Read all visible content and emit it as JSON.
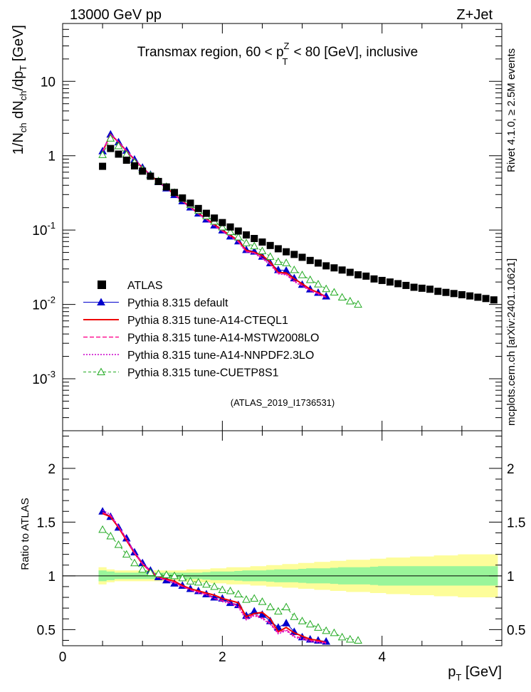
{
  "header": {
    "left": "13000 GeV pp",
    "right": "Z+Jet"
  },
  "chart_data": {
    "type": "line",
    "title": "Transmax region, 60 < p",
    "title_sub": "T",
    "title_sup": "Z",
    "title_tail": "< 80 [GeV], inclusive",
    "watermark": "(ATLAS_2019_I1736531)",
    "side_label_top": "Rivet 4.1.0, ≥ 2.5M events",
    "side_label_bottom": "mcplots.cern.ch [arXiv:2401.10621]",
    "main_ylabel": "1/N_ch dN_ch/dp_T [GeV]",
    "ratio_ylabel": "Ratio to ATLAS",
    "xlabel": "p_T [GeV]",
    "xlim": [
      0,
      5.5
    ],
    "ylim_main": [
      0.0002,
      60
    ],
    "ylim_ratio": [
      0.35,
      2.35
    ],
    "x_ticks": [
      "0",
      "2",
      "4"
    ],
    "y_ticks_main": [
      "10",
      "1",
      "10^-1",
      "10^-2",
      "10^-3"
    ],
    "y_ticks_ratio": [
      "2",
      "1.5",
      "1",
      "0.5"
    ],
    "x": [
      0.5,
      0.6,
      0.7,
      0.8,
      0.9,
      1.0,
      1.1,
      1.2,
      1.3,
      1.4,
      1.5,
      1.6,
      1.7,
      1.8,
      1.9,
      2.0,
      2.1,
      2.2,
      2.3,
      2.4,
      2.5,
      2.6,
      2.7,
      2.8,
      2.9,
      3.0,
      3.1,
      3.2,
      3.3,
      3.4,
      3.5,
      3.6,
      3.7,
      3.8,
      3.9,
      4.0,
      4.1,
      4.2,
      4.3,
      4.4,
      4.5,
      4.6,
      4.7,
      4.8,
      4.9,
      5.0,
      5.1,
      5.2,
      5.3,
      5.4
    ],
    "series": [
      {
        "name": "ATLAS",
        "values": [
          0.72,
          1.25,
          1.05,
          0.87,
          0.73,
          0.62,
          0.53,
          0.45,
          0.38,
          0.32,
          0.27,
          0.23,
          0.195,
          0.168,
          0.145,
          0.126,
          0.11,
          0.097,
          0.086,
          0.077,
          0.069,
          0.062,
          0.056,
          0.051,
          0.047,
          0.043,
          0.039,
          0.036,
          0.033,
          0.031,
          0.029,
          0.027,
          0.025,
          0.024,
          0.022,
          0.021,
          0.02,
          0.019,
          0.018,
          0.017,
          0.0165,
          0.016,
          0.015,
          0.0145,
          0.014,
          0.0135,
          0.013,
          0.0125,
          0.012,
          0.0115
        ],
        "ratio_band_inner": [
          0.05,
          0.04,
          0.03,
          0.03,
          0.03,
          0.03,
          0.03,
          0.03,
          0.03,
          0.03,
          0.03,
          0.03,
          0.03,
          0.035,
          0.04,
          0.04,
          0.04,
          0.045,
          0.05,
          0.05,
          0.05,
          0.055,
          0.06,
          0.06,
          0.06,
          0.065,
          0.07,
          0.07,
          0.07,
          0.075,
          0.08,
          0.08,
          0.08,
          0.08,
          0.085,
          0.09,
          0.09,
          0.09,
          0.09,
          0.09,
          0.09,
          0.09,
          0.09,
          0.09,
          0.09,
          0.09,
          0.09,
          0.09,
          0.09,
          0.09
        ],
        "ratio_band_outer": [
          0.08,
          0.06,
          0.05,
          0.05,
          0.05,
          0.05,
          0.05,
          0.05,
          0.05,
          0.05,
          0.05,
          0.06,
          0.06,
          0.06,
          0.07,
          0.07,
          0.08,
          0.08,
          0.08,
          0.09,
          0.09,
          0.1,
          0.1,
          0.11,
          0.11,
          0.12,
          0.12,
          0.13,
          0.13,
          0.14,
          0.14,
          0.15,
          0.15,
          0.15,
          0.16,
          0.16,
          0.17,
          0.17,
          0.17,
          0.18,
          0.18,
          0.18,
          0.19,
          0.19,
          0.19,
          0.2,
          0.2,
          0.2,
          0.2,
          0.2
        ],
        "color": "#000000",
        "band_inner_color": "#9af59a",
        "band_outer_color": "#fdfd9a"
      },
      {
        "name": "Pythia 8.315 default",
        "ratio": [
          1.6,
          1.55,
          1.45,
          1.35,
          1.22,
          1.12,
          1.05,
          0.99,
          0.96,
          0.93,
          0.91,
          0.88,
          0.86,
          0.83,
          0.8,
          0.79,
          0.75,
          0.73,
          0.63,
          0.67,
          0.64,
          0.58,
          0.52,
          0.56,
          0.48,
          0.43,
          0.41,
          0.4,
          0.39
        ],
        "color": "#0000cc"
      },
      {
        "name": "Pythia 8.315 tune-A14-CTEQL1",
        "ratio": [
          1.58,
          1.55,
          1.45,
          1.33,
          1.21,
          1.11,
          1.04,
          0.99,
          0.97,
          0.95,
          0.91,
          0.88,
          0.86,
          0.84,
          0.82,
          0.79,
          0.77,
          0.75,
          0.62,
          0.65,
          0.66,
          0.6,
          0.48,
          0.52,
          0.47,
          0.44,
          0.41,
          0.4,
          0.38
        ],
        "color": "#ee0000"
      },
      {
        "name": "Pythia 8.315 tune-A14-MSTW2008LO",
        "ratio": [
          1.59,
          1.56,
          1.46,
          1.34,
          1.21,
          1.11,
          1.04,
          0.98,
          0.96,
          0.94,
          0.9,
          0.87,
          0.85,
          0.83,
          0.79,
          0.77,
          0.75,
          0.72,
          0.6,
          0.64,
          0.61,
          0.56,
          0.47,
          0.5,
          0.44,
          0.42,
          0.4,
          0.39,
          0.38
        ],
        "color": "#ff1493"
      },
      {
        "name": "Pythia 8.315 tune-A14-NNPDF2.3LO",
        "ratio": [
          1.61,
          1.57,
          1.46,
          1.35,
          1.22,
          1.12,
          1.05,
          0.99,
          0.96,
          0.93,
          0.9,
          0.87,
          0.84,
          0.82,
          0.79,
          0.76,
          0.74,
          0.71,
          0.59,
          0.63,
          0.6,
          0.55,
          0.46,
          0.49,
          0.43,
          0.41,
          0.39,
          0.38,
          0.37
        ],
        "color": "#cc00cc"
      },
      {
        "name": "Pythia 8.315 tune-CUETP8S1",
        "ratio": [
          1.43,
          1.37,
          1.29,
          1.2,
          1.12,
          1.06,
          1.03,
          1.02,
          1.01,
          1.0,
          0.98,
          0.95,
          0.94,
          0.92,
          0.9,
          0.87,
          0.86,
          0.83,
          0.78,
          0.79,
          0.76,
          0.71,
          0.67,
          0.71,
          0.62,
          0.58,
          0.55,
          0.52,
          0.49,
          0.47,
          0.43,
          0.41,
          0.4
        ],
        "color": "#22aa22"
      }
    ]
  }
}
